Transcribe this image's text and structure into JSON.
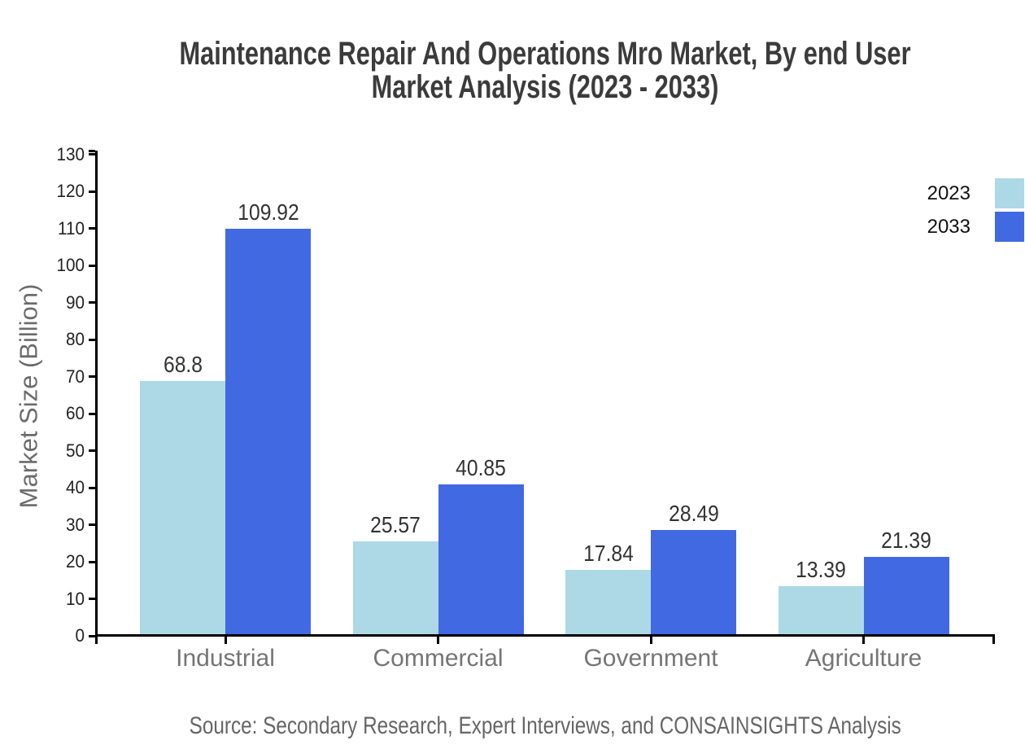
{
  "header": {
    "title_lines": [
      "Maintenance Repair And Operations Mro Market, By end User",
      "Market Analysis (2023 - 2033)"
    ]
  },
  "chart_data": {
    "type": "bar",
    "title": "Maintenance Repair And Operations Mro Market, By end User Market Analysis (2023 - 2033)",
    "categories": [
      "Industrial",
      "Commercial",
      "Government",
      "Agriculture"
    ],
    "series": [
      {
        "name": "2023",
        "color": "#ADD8E6",
        "values": [
          68.8,
          25.57,
          17.84,
          13.39
        ]
      },
      {
        "name": "2033",
        "color": "#4169E1",
        "values": [
          109.92,
          40.85,
          28.49,
          21.39
        ]
      }
    ],
    "xlabel": "",
    "ylabel": "Market Size (Billion)",
    "ylim": [
      0,
      130
    ],
    "ytick_step": 10,
    "grid": false,
    "legend_position": "top-right",
    "value_labels": true
  },
  "footer": {
    "source": "Source: Secondary Research, Expert Interviews, and CONSAINSIGHTS Analysis"
  },
  "colors": {
    "series_2023": "#ADD8E6",
    "series_2033": "#4169E1",
    "axis": "#000000",
    "title_text": "#3B3B3B",
    "tick_label": "#222222",
    "category_label": "#757575",
    "axis_title": "#6B6B6B",
    "value_label": "#333333",
    "source_text": "#666666",
    "background": "#FFFFFF"
  }
}
